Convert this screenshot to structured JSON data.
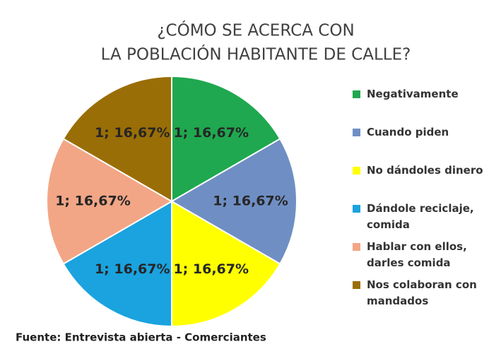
{
  "chart_data": {
    "type": "pie",
    "title": [
      "¿CÓMO SE ACERCA CON",
      "LA POBLACIÓN HABITANTE DE CALLE?"
    ],
    "categories": [
      "Negativamente",
      "Cuando piden",
      "No dándoles dinero",
      "Dándole reciclaje, comida",
      "Hablar con ellos, darles comida",
      "Nos colaboran con mandados"
    ],
    "values": [
      1,
      1,
      1,
      1,
      1,
      1
    ],
    "value_labels": [
      "1; 16,67%",
      "1; 16,67%",
      "1; 16,67%",
      "1; 16,67%",
      "1; 16,67%",
      "1; 16,67%"
    ],
    "colors": [
      "#1fa84f",
      "#6f8fc4",
      "#ffff00",
      "#1aa3df",
      "#f2a686",
      "#9a6e06"
    ],
    "legend": "right",
    "source": "Fuente: Entrevista abierta - Comerciantes"
  }
}
